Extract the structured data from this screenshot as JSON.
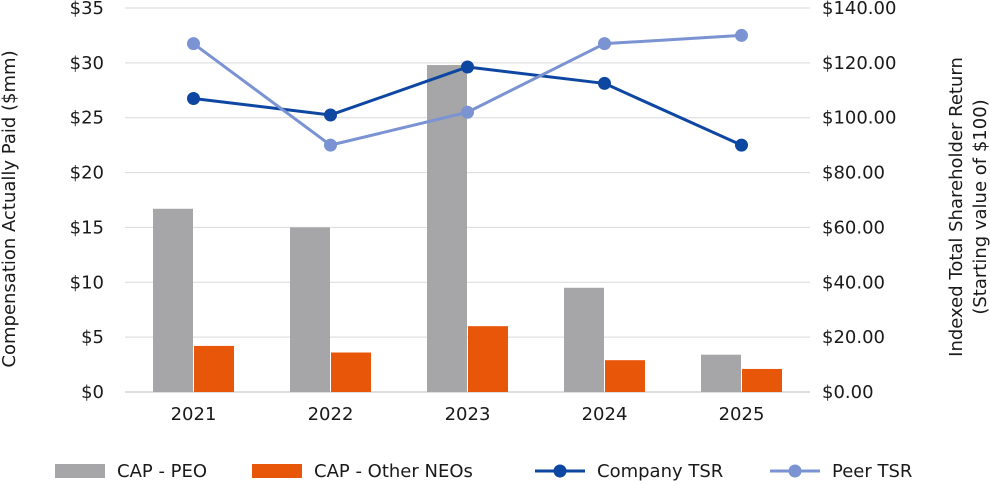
{
  "chart_data": {
    "type": "bar",
    "categories": [
      "2021",
      "2022",
      "2023",
      "2024",
      "2025"
    ],
    "series": [
      {
        "name": "CAP - PEO",
        "kind": "bar",
        "axis": "left",
        "color": "#a6a6a8",
        "values": [
          16.7,
          15.0,
          29.8,
          9.5,
          3.4
        ]
      },
      {
        "name": "CAP - Other NEOs",
        "kind": "bar",
        "axis": "left",
        "color": "#e8560a",
        "values": [
          4.2,
          3.6,
          6.0,
          2.9,
          2.1
        ]
      },
      {
        "name": "Company TSR",
        "kind": "line",
        "axis": "right",
        "color": "#0d47a1",
        "values": [
          107.0,
          101.0,
          118.5,
          112.5,
          90.0
        ]
      },
      {
        "name": "Peer TSR",
        "kind": "line",
        "axis": "right",
        "color": "#7b93d3",
        "values": [
          127.0,
          90.0,
          102.0,
          127.0,
          130.0
        ]
      }
    ],
    "ylabel": "Compensation Actually Paid ($mm)",
    "y2label_line1": "Indexed Total Shareholder Return",
    "y2label_line2": "(Starting value of $100)",
    "ylim": [
      0,
      35
    ],
    "y2lim": [
      0,
      140
    ],
    "yticks": [
      "$0",
      "$5",
      "$10",
      "$15",
      "$20",
      "$25",
      "$30",
      "$35"
    ],
    "y2ticks": [
      "$0.00",
      "$20.00",
      "$40.00",
      "$60.00",
      "$80.00",
      "$100.00",
      "$120.00",
      "$140.00"
    ],
    "grid": true,
    "legend_position": "bottom"
  }
}
